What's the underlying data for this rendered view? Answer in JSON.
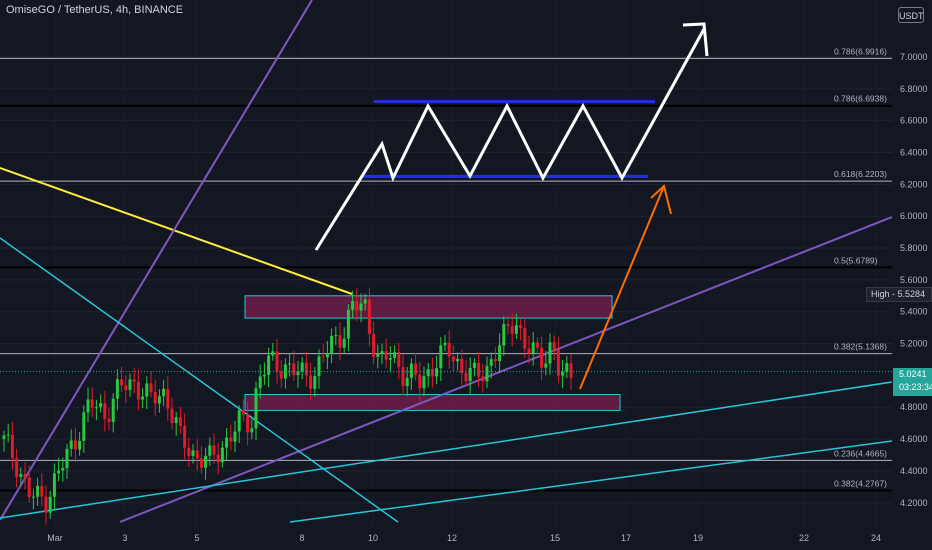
{
  "header": {
    "title": "OmiseGO / TetherUS, 4h, BINANCE",
    "currency": "USDT"
  },
  "price_axis": {
    "labels": [
      "7.0000",
      "6.8000",
      "6.6000",
      "6.4000",
      "6.2000",
      "6.0000",
      "5.8000",
      "5.6000",
      "5.4000",
      "5.2000",
      "4.8000",
      "4.6000",
      "4.4000",
      "4.2000"
    ]
  },
  "time_axis": {
    "labels": [
      "Mar",
      "3",
      "5",
      "8",
      "10",
      "12",
      "15",
      "17",
      "19",
      "22",
      "24"
    ]
  },
  "current_price": {
    "value": "5.0241",
    "countdown": "03:23:34"
  },
  "high_marker": {
    "label": "High",
    "value": "5.5284"
  },
  "colors": {
    "background": "#131722",
    "up": "#26a69a",
    "down": "#ef5350",
    "candle_up": "#26c940",
    "candle_down": "#e3192c",
    "fib_line": "#b2b5be",
    "fib_level": "#000000",
    "purple_trend": "#7e57c2",
    "cyan_trend": "#26c6da",
    "yellow_trend": "#ffeb3b",
    "zone_fill": "#7a1e4e",
    "zone_border": "#26c6da",
    "projection": "#ffffff",
    "channel": "#2330e0",
    "arrow_orange": "#ff6d00"
  },
  "chart_data": {
    "type": "candlestick",
    "symbol": "OmiseGO / TetherUS",
    "interval": "4h",
    "exchange": "BINANCE",
    "y_range": [
      4.15,
      7.2
    ],
    "x_categories": [
      "Mar",
      "3",
      "5",
      "8",
      "10",
      "12",
      "15",
      "17",
      "19",
      "22",
      "24"
    ],
    "fib_levels": [
      {
        "label": "0.786(6.9916)",
        "value": 6.9916
      },
      {
        "label": "0.786(6.6938)",
        "value": 6.6938
      },
      {
        "label": "0.618(6.2203)",
        "value": 6.2203
      },
      {
        "label": "0.5(5.6789)",
        "value": 5.6789
      },
      {
        "label": "0.382(5.1368)",
        "value": 5.1368
      },
      {
        "label": "0.236(4.4665)",
        "value": 4.4665
      },
      {
        "label": "0.382(4.2767)",
        "value": 4.2767
      }
    ],
    "zones": [
      {
        "name": "resistance-zone",
        "from": 5.36,
        "to": 5.5
      },
      {
        "name": "support-zone",
        "from": 4.88,
        "to": 4.78
      }
    ],
    "channel": {
      "top": 6.72,
      "bottom": 6.25
    },
    "last": 5.0241,
    "high": 5.5284
  }
}
